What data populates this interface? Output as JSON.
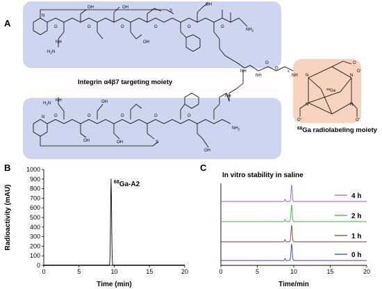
{
  "panels": {
    "a": "A",
    "b": "B",
    "c": "C"
  },
  "structure": {
    "targeting_label": "Integrin α4β7 targeting moiety",
    "radiolabel_label": "Ga radiolabeling moiety",
    "radiolabel_sup": "68",
    "chelate_center": "Ga",
    "chelate_center_sup": "68",
    "amide": "NH",
    "amine": "NH",
    "nh2": "NH",
    "nh2_sub": "2",
    "h2n": "H",
    "h2n_sub": "2",
    "h2n_n": "N",
    "peg_sub": "6",
    "o": "O",
    "o_minus": "O",
    "minus": "−",
    "s": "S",
    "n": "N",
    "h": "H",
    "oh": "OH"
  },
  "chart_data": [
    {
      "type": "line",
      "panel": "B",
      "xlabel": "Time (min)",
      "ylabel": "Radioactivity (mAU)",
      "xlim": [
        0,
        20
      ],
      "ylim": [
        0,
        1000
      ],
      "xticks": [
        0,
        5,
        10,
        15,
        20
      ],
      "yticks": [
        0,
        100,
        200,
        300,
        400,
        500,
        600,
        700,
        800,
        900,
        1000
      ],
      "series": [
        {
          "name": "⁶⁸Ga-A2",
          "name_sup": "68",
          "name_main": "Ga-A2",
          "color": "#000000",
          "peak_time": 9.55,
          "peak_height": 900
        }
      ]
    },
    {
      "type": "line",
      "panel": "C",
      "title": "In vitro stability in saline",
      "xlabel": "Time/min",
      "xlim": [
        0,
        20
      ],
      "xticks": [
        0,
        5,
        10,
        15,
        20
      ],
      "series": [
        {
          "name": "4 h",
          "color": "#9b59d0",
          "peak_time": 9.7
        },
        {
          "name": "2 h",
          "color": "#3cb043",
          "peak_time": 9.7
        },
        {
          "name": "1 h",
          "color": "#8b3a2a",
          "peak_time": 9.7
        },
        {
          "name": "0 h",
          "color": "#2b3fd6",
          "peak_time": 9.7
        }
      ]
    }
  ],
  "colors": {
    "peptide_box": "#cdd6ee",
    "chelator_box": "#f8d4c0"
  }
}
